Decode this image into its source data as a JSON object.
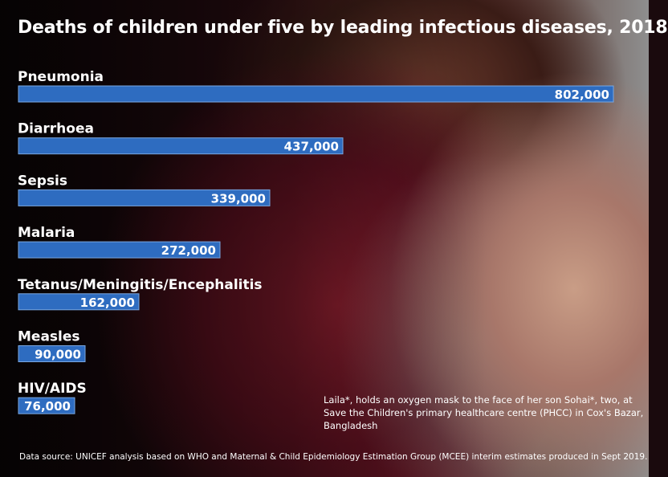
{
  "chart_data": {
    "type": "bar",
    "orientation": "horizontal",
    "title": "Deaths of children under five by leading infectious diseases, 2018",
    "categories": [
      "Pneumonia",
      "Diarrhoea",
      "Sepsis",
      "Malaria",
      "Tetanus/Meningitis/Encephalitis",
      "Measles",
      "HIV/AIDS"
    ],
    "values": [
      802000,
      437000,
      339000,
      272000,
      162000,
      90000,
      76000
    ],
    "value_labels": [
      "802,000",
      "437,000",
      "339,000",
      "272,000",
      "162,000",
      "90,000",
      "76,000"
    ],
    "xlabel": "",
    "ylabel": "",
    "grid": false,
    "colors": {
      "bar": "#2e6cc0",
      "text": "#ffffff"
    }
  },
  "caption": "Laila*, holds an oxygen mask to the face of her son Sohai*, two, at Save the Children's primary healthcare centre (PHCC) in Cox's Bazar, Bangladesh",
  "source": "Data source: UNICEF analysis based on WHO and Maternal & Child Epidemiology Estimation Group (MCEE) interim estimates produced in Sept 2019."
}
